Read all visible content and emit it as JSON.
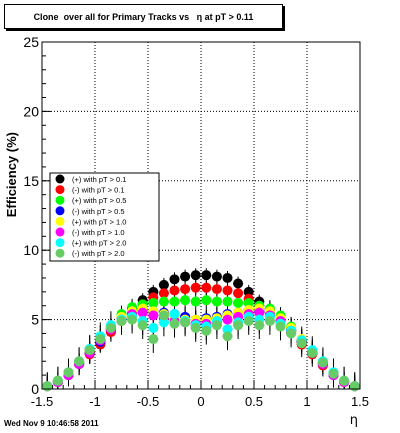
{
  "title": "Clone  over all for Primary Tracks vs   η at pT > 0.11",
  "timestamp": "Wed Nov  9 10:46:58 2011",
  "chart_data": {
    "type": "scatter",
    "xlabel": "η",
    "ylabel": "Efficiency (%)",
    "xlim": [
      -1.5,
      1.5
    ],
    "ylim": [
      0,
      25
    ],
    "x_ticks": [
      "-1.5",
      "-1",
      "-0.5",
      "0",
      "0.5",
      "1",
      "1.5"
    ],
    "y_ticks": [
      "0",
      "5",
      "10",
      "15",
      "20",
      "25"
    ],
    "grid": true,
    "legend_position": "middle-left",
    "series": [
      {
        "name": "(+) with pT > 0.1",
        "color": "#000000",
        "error": 0.5,
        "points": [
          [
            -1.45,
            0.2
          ],
          [
            -1.35,
            0.5
          ],
          [
            -1.25,
            1.0
          ],
          [
            -1.15,
            1.8
          ],
          [
            -1.05,
            2.6
          ],
          [
            -0.95,
            3.3
          ],
          [
            -0.85,
            4.2
          ],
          [
            -0.75,
            5.0
          ],
          [
            -0.65,
            5.8
          ],
          [
            -0.55,
            6.4
          ],
          [
            -0.45,
            7.0
          ],
          [
            -0.35,
            7.5
          ],
          [
            -0.25,
            7.9
          ],
          [
            -0.15,
            8.1
          ],
          [
            -0.05,
            8.2
          ],
          [
            0.05,
            8.2
          ],
          [
            0.15,
            8.1
          ],
          [
            0.25,
            8.0
          ],
          [
            0.35,
            7.6
          ],
          [
            0.45,
            7.0
          ],
          [
            0.55,
            6.3
          ],
          [
            0.65,
            5.7
          ],
          [
            0.75,
            5.0
          ],
          [
            0.85,
            4.2
          ],
          [
            0.95,
            3.4
          ],
          [
            1.05,
            2.6
          ],
          [
            1.15,
            1.8
          ],
          [
            1.25,
            1.0
          ],
          [
            1.35,
            0.5
          ],
          [
            1.45,
            0.2
          ]
        ]
      },
      {
        "name": "(-) with pT > 0.1",
        "color": "#ff0000",
        "error": 0.5,
        "points": [
          [
            -1.45,
            0.2
          ],
          [
            -1.35,
            0.5
          ],
          [
            -1.25,
            1.0
          ],
          [
            -1.15,
            1.8
          ],
          [
            -1.05,
            2.5
          ],
          [
            -0.95,
            3.2
          ],
          [
            -0.85,
            4.1
          ],
          [
            -0.75,
            4.9
          ],
          [
            -0.65,
            5.6
          ],
          [
            -0.55,
            6.1
          ],
          [
            -0.45,
            6.6
          ],
          [
            -0.35,
            6.9
          ],
          [
            -0.25,
            7.1
          ],
          [
            -0.15,
            7.2
          ],
          [
            -0.05,
            7.3
          ],
          [
            0.05,
            7.3
          ],
          [
            0.15,
            7.2
          ],
          [
            0.25,
            7.1
          ],
          [
            0.35,
            6.9
          ],
          [
            0.45,
            6.5
          ],
          [
            0.55,
            6.0
          ],
          [
            0.65,
            5.5
          ],
          [
            0.75,
            4.9
          ],
          [
            0.85,
            4.1
          ],
          [
            0.95,
            3.2
          ],
          [
            1.05,
            2.5
          ],
          [
            1.15,
            1.7
          ],
          [
            1.25,
            1.0
          ],
          [
            1.35,
            0.5
          ],
          [
            1.45,
            0.2
          ]
        ]
      },
      {
        "name": "(+) with pT > 0.5",
        "color": "#00ff00",
        "error": 0.6,
        "points": [
          [
            -1.45,
            0.2
          ],
          [
            -1.35,
            0.5
          ],
          [
            -1.25,
            1.1
          ],
          [
            -1.15,
            1.9
          ],
          [
            -1.05,
            2.7
          ],
          [
            -0.95,
            3.5
          ],
          [
            -0.85,
            4.5
          ],
          [
            -0.75,
            5.4
          ],
          [
            -0.65,
            5.9
          ],
          [
            -0.55,
            6.1
          ],
          [
            -0.45,
            6.2
          ],
          [
            -0.35,
            6.3
          ],
          [
            -0.25,
            6.3
          ],
          [
            -0.15,
            6.4
          ],
          [
            -0.05,
            6.3
          ],
          [
            0.05,
            6.4
          ],
          [
            0.15,
            6.3
          ],
          [
            0.25,
            6.3
          ],
          [
            0.35,
            6.2
          ],
          [
            0.45,
            6.2
          ],
          [
            0.55,
            6.0
          ],
          [
            0.65,
            5.8
          ],
          [
            0.75,
            5.3
          ],
          [
            0.85,
            4.5
          ],
          [
            0.95,
            3.5
          ],
          [
            1.05,
            2.7
          ],
          [
            1.15,
            1.9
          ],
          [
            1.25,
            1.1
          ],
          [
            1.35,
            0.5
          ],
          [
            1.45,
            0.2
          ]
        ]
      },
      {
        "name": "(-) with pT > 0.5",
        "color": "#0000ff",
        "error": 0.7,
        "points": [
          [
            -1.45,
            0.2
          ],
          [
            -1.35,
            0.5
          ],
          [
            -1.25,
            1.0
          ],
          [
            -1.15,
            1.8
          ],
          [
            -1.05,
            2.6
          ],
          [
            -0.95,
            3.4
          ],
          [
            -0.85,
            4.3
          ],
          [
            -0.75,
            5.1
          ],
          [
            -0.65,
            5.5
          ],
          [
            -0.55,
            5.7
          ],
          [
            -0.45,
            5.6
          ],
          [
            -0.35,
            5.5
          ],
          [
            -0.25,
            5.4
          ],
          [
            -0.15,
            5.2
          ],
          [
            -0.05,
            5.0
          ],
          [
            0.05,
            5.1
          ],
          [
            0.15,
            5.2
          ],
          [
            0.25,
            5.4
          ],
          [
            0.35,
            5.5
          ],
          [
            0.45,
            5.7
          ],
          [
            0.55,
            5.6
          ],
          [
            0.65,
            5.5
          ],
          [
            0.75,
            5.0
          ],
          [
            0.85,
            4.3
          ],
          [
            0.95,
            3.4
          ],
          [
            1.05,
            2.6
          ],
          [
            1.15,
            1.8
          ],
          [
            1.25,
            1.0
          ],
          [
            1.35,
            0.5
          ],
          [
            1.45,
            0.2
          ]
        ]
      },
      {
        "name": "(+) with pT > 1.0",
        "color": "#ffff00",
        "error": 0.7,
        "points": [
          [
            -1.45,
            0.2
          ],
          [
            -1.35,
            0.5
          ],
          [
            -1.25,
            1.1
          ],
          [
            -1.15,
            1.9
          ],
          [
            -1.05,
            2.7
          ],
          [
            -0.95,
            3.6
          ],
          [
            -0.85,
            4.4
          ],
          [
            -0.75,
            5.2
          ],
          [
            -0.65,
            5.6
          ],
          [
            -0.55,
            5.8
          ],
          [
            -0.45,
            5.6
          ],
          [
            -0.35,
            5.4
          ],
          [
            -0.25,
            5.2
          ],
          [
            -0.15,
            5.0
          ],
          [
            -0.05,
            5.0
          ],
          [
            0.05,
            5.0
          ],
          [
            0.15,
            5.1
          ],
          [
            0.25,
            5.3
          ],
          [
            0.35,
            5.5
          ],
          [
            0.45,
            5.7
          ],
          [
            0.55,
            5.8
          ],
          [
            0.65,
            5.6
          ],
          [
            0.75,
            5.1
          ],
          [
            0.85,
            4.4
          ],
          [
            0.95,
            3.6
          ],
          [
            1.05,
            2.7
          ],
          [
            1.15,
            1.9
          ],
          [
            1.25,
            1.1
          ],
          [
            1.35,
            0.5
          ],
          [
            1.45,
            0.2
          ]
        ]
      },
      {
        "name": "(-) with pT > 1.0",
        "color": "#ff00ff",
        "error": 0.8,
        "points": [
          [
            -1.45,
            0.2
          ],
          [
            -1.35,
            0.5
          ],
          [
            -1.25,
            1.0
          ],
          [
            -1.15,
            1.8
          ],
          [
            -1.05,
            2.6
          ],
          [
            -0.95,
            3.5
          ],
          [
            -0.85,
            4.3
          ],
          [
            -0.75,
            5.0
          ],
          [
            -0.65,
            5.4
          ],
          [
            -0.55,
            5.5
          ],
          [
            -0.45,
            5.3
          ],
          [
            -0.35,
            5.1
          ],
          [
            -0.25,
            4.9
          ],
          [
            -0.15,
            4.8
          ],
          [
            -0.05,
            4.7
          ],
          [
            0.05,
            4.7
          ],
          [
            0.15,
            4.8
          ],
          [
            0.25,
            5.0
          ],
          [
            0.35,
            5.2
          ],
          [
            0.45,
            5.4
          ],
          [
            0.55,
            5.5
          ],
          [
            0.65,
            5.3
          ],
          [
            0.75,
            4.9
          ],
          [
            0.85,
            4.2
          ],
          [
            0.95,
            3.5
          ],
          [
            1.05,
            2.6
          ],
          [
            1.15,
            1.8
          ],
          [
            1.25,
            1.0
          ],
          [
            1.35,
            0.5
          ],
          [
            1.45,
            0.2
          ]
        ]
      },
      {
        "name": "(+) with pT > 2.0",
        "color": "#00ffff",
        "error": 1.0,
        "points": [
          [
            -1.45,
            0.2
          ],
          [
            -1.35,
            0.6
          ],
          [
            -1.25,
            1.2
          ],
          [
            -1.15,
            2.0
          ],
          [
            -1.05,
            2.9
          ],
          [
            -0.95,
            3.8
          ],
          [
            -0.85,
            4.6
          ],
          [
            -0.75,
            5.0
          ],
          [
            -0.65,
            5.2
          ],
          [
            -0.55,
            4.9
          ],
          [
            -0.45,
            4.4
          ],
          [
            -0.35,
            4.8
          ],
          [
            -0.25,
            5.4
          ],
          [
            -0.15,
            4.9
          ],
          [
            -0.05,
            4.6
          ],
          [
            0.05,
            4.5
          ],
          [
            0.15,
            4.9
          ],
          [
            0.25,
            4.3
          ],
          [
            0.35,
            4.8
          ],
          [
            0.45,
            5.2
          ],
          [
            0.55,
            5.0
          ],
          [
            0.65,
            5.2
          ],
          [
            0.75,
            4.7
          ],
          [
            0.85,
            4.2
          ],
          [
            0.95,
            3.5
          ],
          [
            1.05,
            2.8
          ],
          [
            1.15,
            2.0
          ],
          [
            1.25,
            1.2
          ],
          [
            1.35,
            0.6
          ],
          [
            1.45,
            0.2
          ]
        ]
      },
      {
        "name": "(-) with pT > 2.0",
        "color": "#66cc66",
        "error": 1.0,
        "points": [
          [
            -1.45,
            0.2
          ],
          [
            -1.35,
            0.6
          ],
          [
            -1.25,
            1.2
          ],
          [
            -1.15,
            2.0
          ],
          [
            -1.05,
            2.8
          ],
          [
            -0.95,
            3.6
          ],
          [
            -0.85,
            4.4
          ],
          [
            -0.75,
            4.9
          ],
          [
            -0.65,
            5.0
          ],
          [
            -0.55,
            4.6
          ],
          [
            -0.45,
            3.6
          ],
          [
            -0.35,
            5.3
          ],
          [
            -0.25,
            4.7
          ],
          [
            -0.15,
            4.8
          ],
          [
            -0.05,
            4.4
          ],
          [
            0.05,
            4.2
          ],
          [
            0.15,
            4.6
          ],
          [
            0.25,
            3.8
          ],
          [
            0.35,
            4.6
          ],
          [
            0.45,
            4.9
          ],
          [
            0.55,
            4.6
          ],
          [
            0.65,
            4.9
          ],
          [
            0.75,
            4.5
          ],
          [
            0.85,
            4.0
          ],
          [
            0.95,
            3.3
          ],
          [
            1.05,
            2.6
          ],
          [
            1.15,
            1.9
          ],
          [
            1.25,
            1.1
          ],
          [
            1.35,
            0.6
          ],
          [
            1.45,
            0.2
          ]
        ]
      }
    ]
  }
}
